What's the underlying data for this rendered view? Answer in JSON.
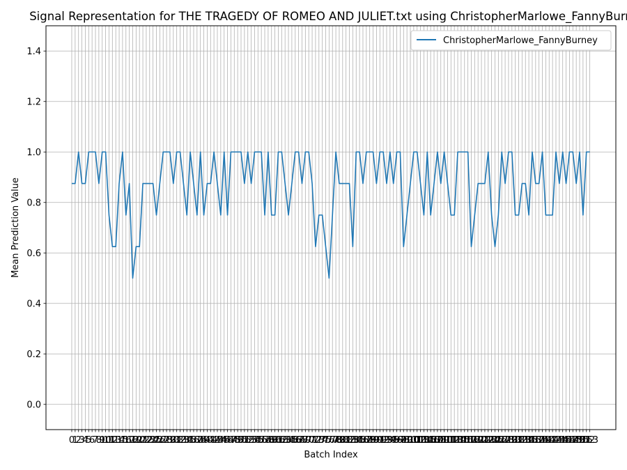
{
  "chart_data": {
    "type": "line",
    "title": "Signal Representation for THE TRAGEDY OF ROMEO AND JULIET.txt using ChristopherMarlowe_FannyBurn",
    "xlabel": "Batch Index",
    "ylabel": "Mean Prediction Value",
    "ylim": [
      -0.1,
      1.5
    ],
    "yticks": [
      "0.0",
      "0.2",
      "0.4",
      "0.6",
      "0.8",
      "1.0",
      "1.2",
      "1.4"
    ],
    "x_first": 0,
    "x_last": 153,
    "grid": true,
    "legend_position": "top-right",
    "series": [
      {
        "name": "ChristopherMarlowe_FannyBurney",
        "color": "#1f77b4",
        "values": [
          0.875,
          0.875,
          1.0,
          0.875,
          0.875,
          1.0,
          1.0,
          1.0,
          0.875,
          1.0,
          1.0,
          0.75,
          0.625,
          0.625,
          0.875,
          1.0,
          0.75,
          0.875,
          0.5,
          0.625,
          0.625,
          0.875,
          0.875,
          0.875,
          0.875,
          0.75,
          0.875,
          1.0,
          1.0,
          1.0,
          0.875,
          1.0,
          1.0,
          0.875,
          0.75,
          1.0,
          0.875,
          0.75,
          1.0,
          0.75,
          0.875,
          0.875,
          1.0,
          0.875,
          0.75,
          1.0,
          0.75,
          1.0,
          1.0,
          1.0,
          1.0,
          0.875,
          1.0,
          0.875,
          1.0,
          1.0,
          1.0,
          0.75,
          1.0,
          0.75,
          0.75,
          1.0,
          1.0,
          0.875,
          0.75,
          0.875,
          1.0,
          1.0,
          0.875,
          1.0,
          1.0,
          0.875,
          0.625,
          0.75,
          0.75,
          0.625,
          0.5,
          0.75,
          1.0,
          0.875,
          0.875,
          0.875,
          0.875,
          0.625,
          1.0,
          1.0,
          0.875,
          1.0,
          1.0,
          1.0,
          0.875,
          1.0,
          1.0,
          0.875,
          1.0,
          0.875,
          1.0,
          1.0,
          0.625,
          0.75,
          0.875,
          1.0,
          1.0,
          0.875,
          0.75,
          1.0,
          0.75,
          0.875,
          1.0,
          0.875,
          1.0,
          0.875,
          0.75,
          0.75,
          1.0,
          1.0,
          1.0,
          1.0,
          0.625,
          0.75,
          0.875,
          0.875,
          0.875,
          1.0,
          0.75,
          0.625,
          0.75,
          1.0,
          0.875,
          1.0,
          1.0,
          0.75,
          0.75,
          0.875,
          0.875,
          0.75,
          1.0,
          0.875,
          0.875,
          1.0,
          0.75,
          0.75,
          0.75,
          1.0,
          0.875,
          1.0,
          0.875,
          1.0,
          1.0,
          0.875,
          1.0,
          0.75,
          1.0,
          1.0
        ]
      }
    ]
  }
}
